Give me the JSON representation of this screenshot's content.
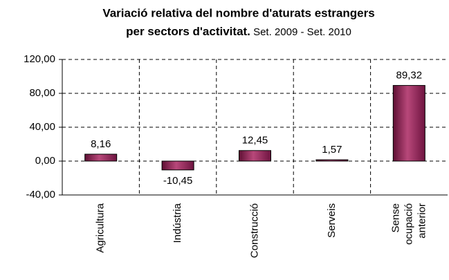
{
  "chart_data": {
    "type": "bar",
    "title": [
      "Variació relativa del nombre d'aturats estrangers",
      "per sectors d'activitat."
    ],
    "subtitle": "Set. 2009 - Set. 2010",
    "categories": [
      [
        "Agricultura"
      ],
      [
        "Indústria"
      ],
      [
        "Construcció"
      ],
      [
        "Serveis"
      ],
      [
        "Sense",
        "ocupació",
        "anterior"
      ]
    ],
    "values": [
      8.16,
      -10.45,
      12.45,
      1.57,
      89.32
    ],
    "value_labels": [
      "8,16",
      "-10,45",
      "12,45",
      "1,57",
      "89,32"
    ],
    "color": "#8b1c4e",
    "ylim": [
      -40,
      120
    ],
    "yticks": [
      {
        "value": -40,
        "label": "-40,00"
      },
      {
        "value": 0,
        "label": "0,00"
      },
      {
        "value": 40,
        "label": "40,00"
      },
      {
        "value": 80,
        "label": "80,00"
      },
      {
        "value": 120,
        "label": "120,00"
      }
    ],
    "grid": true
  }
}
